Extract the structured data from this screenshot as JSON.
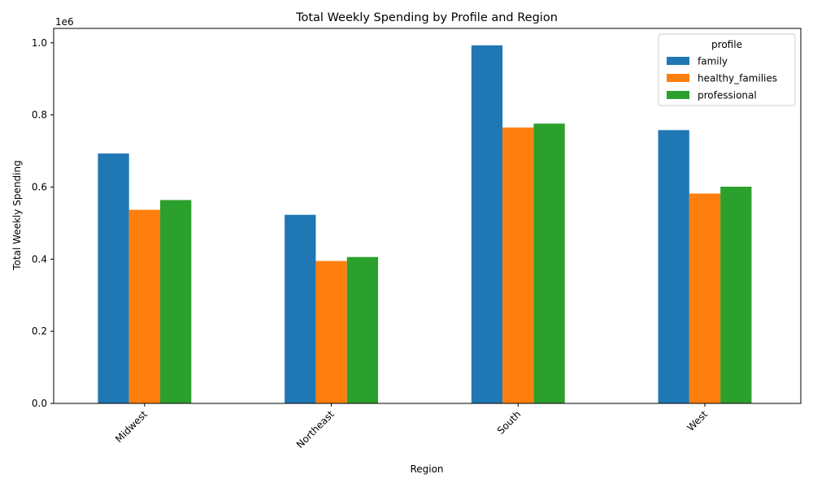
{
  "chart_data": {
    "type": "bar",
    "title": "Total Weekly Spending by Profile and Region",
    "xlabel": "Region",
    "ylabel": "Total Weekly Spending",
    "y_offset_label": "1e6",
    "ylim": [
      0,
      1.04
    ],
    "yticks": [
      "0.0",
      "0.2",
      "0.4",
      "0.6",
      "0.8",
      "1.0"
    ],
    "categories": [
      "Midwest",
      "Northeast",
      "South",
      "West"
    ],
    "legend_title": "profile",
    "legend_position": "top-right",
    "grid": false,
    "series": [
      {
        "name": "family",
        "color": "#1f77b4",
        "values": [
          0.693,
          0.523,
          0.993,
          0.758
        ]
      },
      {
        "name": "healthy_families",
        "color": "#ff7f0e",
        "values": [
          0.537,
          0.395,
          0.765,
          0.582
        ]
      },
      {
        "name": "professional",
        "color": "#2ca02c",
        "values": [
          0.564,
          0.406,
          0.776,
          0.601
        ]
      }
    ]
  }
}
